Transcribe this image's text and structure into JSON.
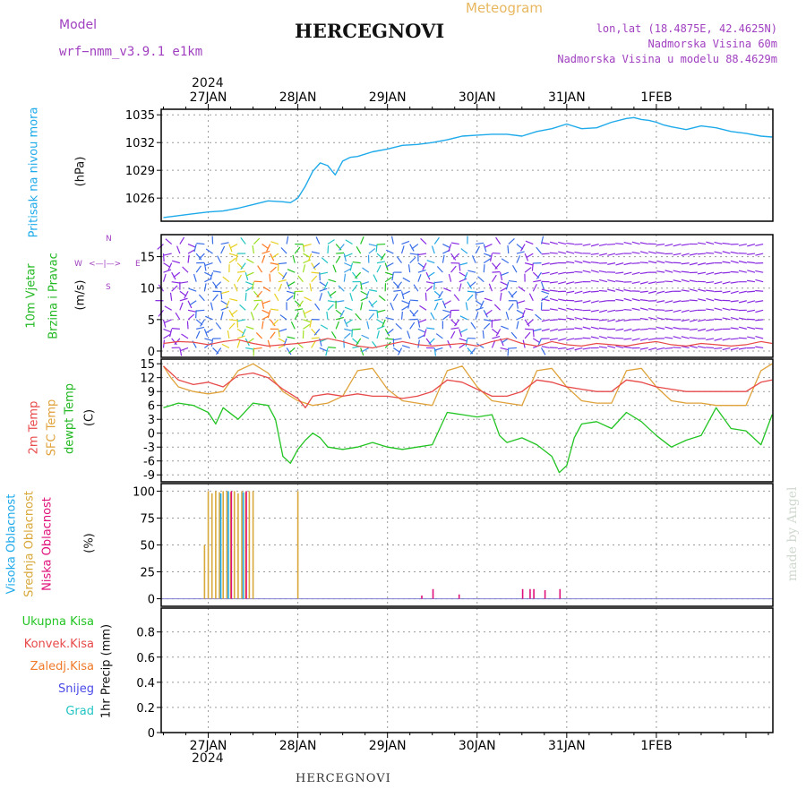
{
  "header": {
    "model_label": "Model",
    "model_name": "wrf−nmm_v3.9.1  e1km",
    "title": "HERCEGNOVI",
    "meteogram_label": "Meteogram",
    "location_line": "lon,lat (18.4875E, 42.4625N)",
    "altitude_line": "Nadmorska Visina 60m",
    "model_altitude_line": "Nadmorska Visina u modelu 88.4629m",
    "year_top": "2024",
    "year_bottom": "2024",
    "footer_title": "HERCEGNOVI",
    "watermark": "made by Angel"
  },
  "colors": {
    "pressure": "#1eaaea",
    "temp2m": "#e84a4a",
    "sfctemp": "#e0a23a",
    "dewpoint": "#22c422",
    "high_cloud": "#1eaaea",
    "mid_cloud": "#d8a83a",
    "low_cloud": "#e0107a",
    "wind_purple": "#8a2be2",
    "wind_speed_line": "#e84a4a"
  },
  "panels": {
    "pressure": {
      "label": "Pritisak na nivou mora",
      "unit": "(hPa)",
      "ticks": [
        1026,
        1029,
        1032,
        1035
      ]
    },
    "wind": {
      "label_1": "10m Vjetar",
      "label_2": "Brzina i Pravac",
      "unit": "(m/s)",
      "ticks": [
        0,
        5,
        10,
        15
      ],
      "compass_n": "N",
      "compass_e": "E",
      "compass_w": "W",
      "compass_s": "S",
      "compass_arrows": "<—|—>"
    },
    "temperature": {
      "label_1": "2m Temp",
      "label_2": "SFC Temp",
      "label_3": "dewpt Temp",
      "unit": "(C)",
      "ticks": [
        -9,
        -6,
        -3,
        0,
        3,
        6,
        9,
        12,
        15
      ]
    },
    "cloud": {
      "label_1": "Visoka Oblacnost",
      "label_2": "Srednja Oblacnost",
      "label_3": "Niska Oblacnost",
      "unit": "(%)",
      "ticks": [
        0,
        25,
        50,
        75,
        100
      ]
    },
    "precip": {
      "legend": [
        "Ukupna Kisa",
        "Konvek.Kisa",
        "Zaledj.Kisa",
        "Snijeg",
        "Grad"
      ],
      "legend_colors": [
        "#22c422",
        "#e84a4a",
        "#f07a2a",
        "#4a4ae8",
        "#22c4c4"
      ],
      "unit": "1hr Precip (mm)",
      "ticks": [
        "0",
        "0.2",
        "0.4",
        "0.6",
        "0.8"
      ]
    }
  },
  "chart_data": {
    "type": "line",
    "days": [
      "27JAN",
      "28JAN",
      "29JAN",
      "30JAN",
      "31JAN",
      "1FEB"
    ],
    "x_range_hours": [
      -12.6,
      151.2
    ],
    "pressure": {
      "name": "Pritisak na nivou mora",
      "ylim": [
        1023.5,
        1035.6
      ],
      "x": [
        -12,
        -8,
        -4,
        0,
        4,
        8,
        12,
        16,
        20,
        22,
        24,
        26,
        28,
        30,
        32,
        34,
        36,
        38,
        40,
        44,
        48,
        52,
        56,
        60,
        64,
        68,
        72,
        76,
        80,
        84,
        88,
        92,
        96,
        100,
        104,
        108,
        112,
        114,
        116,
        118,
        120,
        122,
        124,
        128,
        132,
        136,
        140,
        144,
        148,
        151
      ],
      "values": [
        1023.9,
        1024.1,
        1024.3,
        1024.5,
        1024.6,
        1024.9,
        1025.3,
        1025.7,
        1025.6,
        1025.5,
        1026.0,
        1027.3,
        1028.9,
        1029.8,
        1029.5,
        1028.5,
        1030.0,
        1030.4,
        1030.5,
        1031.0,
        1031.3,
        1031.7,
        1031.8,
        1032.0,
        1032.3,
        1032.7,
        1032.8,
        1032.9,
        1032.9,
        1032.7,
        1033.2,
        1033.5,
        1034.0,
        1033.5,
        1033.6,
        1034.2,
        1034.6,
        1034.7,
        1034.5,
        1034.4,
        1034.2,
        1033.9,
        1033.7,
        1033.4,
        1033.8,
        1033.6,
        1033.2,
        1033.0,
        1032.7,
        1032.6
      ]
    },
    "wind_speed": {
      "name": "10m Vjetar",
      "ylim": [
        -1,
        18.5
      ],
      "x": [
        -12,
        -8,
        -4,
        0,
        4,
        8,
        12,
        16,
        20,
        24,
        28,
        32,
        36,
        40,
        44,
        48,
        52,
        56,
        60,
        64,
        68,
        72,
        76,
        80,
        84,
        88,
        92,
        96,
        100,
        104,
        108,
        112,
        116,
        120,
        124,
        128,
        132,
        136,
        140,
        144,
        148,
        151
      ],
      "values": [
        1.2,
        1.5,
        1.4,
        1.0,
        1.5,
        1.8,
        1.2,
        0.8,
        1.0,
        1.2,
        1.5,
        2.0,
        1.5,
        0.8,
        0.5,
        1.0,
        1.5,
        1.0,
        0.8,
        1.0,
        1.2,
        0.8,
        1.5,
        2.0,
        1.2,
        0.8,
        1.5,
        1.0,
        0.8,
        1.2,
        1.0,
        0.8,
        1.2,
        1.5,
        1.0,
        0.8,
        1.2,
        1.0,
        0.8,
        1.0,
        1.5,
        1.2
      ]
    },
    "temp2m": {
      "name": "2m Temp",
      "ylim": [
        -10.5,
        16
      ],
      "x": [
        -12,
        -10,
        -8,
        -4,
        0,
        4,
        8,
        12,
        14,
        16,
        20,
        24,
        26,
        28,
        32,
        36,
        40,
        44,
        48,
        52,
        56,
        60,
        64,
        68,
        72,
        76,
        80,
        84,
        88,
        92,
        96,
        100,
        104,
        108,
        112,
        116,
        120,
        124,
        128,
        132,
        136,
        140,
        144,
        148,
        151
      ],
      "values": [
        14.5,
        13.0,
        11.5,
        10.5,
        11.0,
        10.0,
        12.5,
        13.0,
        12.5,
        12.0,
        9.5,
        7.5,
        5.5,
        8.0,
        8.5,
        8.0,
        8.5,
        8.0,
        8.0,
        7.5,
        8.0,
        9.0,
        11.5,
        11.0,
        9.5,
        8.0,
        8.0,
        9.0,
        11.5,
        11.0,
        10.0,
        9.5,
        9.0,
        9.0,
        11.5,
        11.0,
        10.0,
        9.5,
        9.0,
        9.0,
        9.0,
        9.0,
        9.0,
        11.0,
        11.5
      ]
    },
    "sfctemp": {
      "name": "SFC Temp",
      "ylim": [
        -10.5,
        16
      ],
      "x": [
        -12,
        -10,
        -8,
        -4,
        0,
        4,
        8,
        12,
        16,
        20,
        24,
        28,
        32,
        36,
        40,
        44,
        48,
        52,
        56,
        60,
        64,
        68,
        72,
        76,
        80,
        84,
        88,
        92,
        96,
        100,
        104,
        108,
        112,
        116,
        120,
        124,
        128,
        132,
        136,
        140,
        144,
        148,
        151
      ],
      "values": [
        14.5,
        12.0,
        10.0,
        9.0,
        8.5,
        9.0,
        13.5,
        15.0,
        13.0,
        9.0,
        7.0,
        6.0,
        6.5,
        8.0,
        13.5,
        14.0,
        9.5,
        7.0,
        6.5,
        6.0,
        13.5,
        14.5,
        10.0,
        7.0,
        6.5,
        6.0,
        13.5,
        14.0,
        10.0,
        7.0,
        6.5,
        6.5,
        13.5,
        14.0,
        10.0,
        7.0,
        6.5,
        6.5,
        6.0,
        6.0,
        6.0,
        13.5,
        15.0
      ]
    },
    "dewpoint": {
      "name": "dewpt Temp",
      "ylim": [
        -10.5,
        16
      ],
      "x": [
        -12,
        -8,
        -4,
        0,
        2,
        4,
        8,
        12,
        16,
        18,
        20,
        22,
        24,
        26,
        28,
        30,
        32,
        36,
        40,
        44,
        48,
        52,
        56,
        60,
        64,
        68,
        72,
        76,
        78,
        80,
        84,
        88,
        92,
        94,
        96,
        98,
        100,
        104,
        108,
        112,
        116,
        120,
        124,
        128,
        132,
        136,
        140,
        144,
        148,
        151
      ],
      "values": [
        5.5,
        6.5,
        6.0,
        4.5,
        2.0,
        5.5,
        3.0,
        6.5,
        6.0,
        3.0,
        -5.0,
        -6.5,
        -3.5,
        -1.5,
        0.0,
        -1.0,
        -3.0,
        -3.5,
        -3.0,
        -2.0,
        -3.0,
        -3.5,
        -3.0,
        -2.5,
        4.5,
        4.0,
        3.5,
        4.0,
        -0.5,
        -2.0,
        -1.0,
        -2.5,
        -5.0,
        -8.5,
        -7.0,
        -1.0,
        2.0,
        2.5,
        1.0,
        4.5,
        2.5,
        -0.5,
        -3.0,
        -1.5,
        -0.5,
        5.5,
        1.0,
        0.5,
        -2.5,
        4.0
      ]
    },
    "cloud_mid": {
      "name": "Srednja Oblacnost",
      "ylim": [
        -7,
        107
      ],
      "x": [
        -1,
        0,
        1,
        2,
        3,
        4,
        5,
        6,
        7,
        8,
        9,
        10,
        11,
        12,
        24
      ],
      "values": [
        50,
        100,
        98,
        100,
        99,
        100,
        100,
        99,
        100,
        98,
        100,
        99,
        100,
        100,
        100
      ]
    },
    "cloud_low": {
      "name": "Niska Oblacnost",
      "ylim": [
        -7,
        107
      ],
      "x": [
        6,
        10,
        57,
        60,
        67,
        84,
        86,
        87,
        90,
        94
      ],
      "values": [
        100,
        100,
        3,
        9,
        4,
        9,
        9,
        9,
        8,
        9
      ]
    },
    "cloud_high": {
      "name": "Visoka Oblacnost",
      "ylim": [
        -7,
        107
      ],
      "x": [
        3,
        5,
        9
      ],
      "values": [
        98,
        100,
        99
      ]
    },
    "precip": {
      "name": "1hr Precip",
      "ylim": [
        0,
        0.99
      ],
      "x": [],
      "values": []
    }
  }
}
